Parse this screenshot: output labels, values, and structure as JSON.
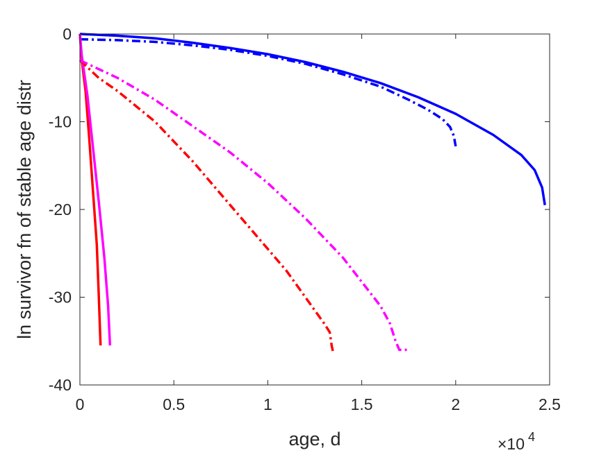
{
  "chart_data": {
    "type": "line",
    "title": "",
    "xlabel": "age, d",
    "ylabel": "ln survivor fn of stable age distr",
    "xlim": [
      0,
      2.5
    ],
    "ylim": [
      -40,
      0
    ],
    "x_multiplier": "×10",
    "x_multiplier_exp": "4",
    "x_ticks": [
      0,
      0.5,
      1,
      1.5,
      2,
      2.5
    ],
    "x_tick_labels": [
      "0",
      "0.5",
      "1",
      "1.5",
      "2",
      "2.5"
    ],
    "y_ticks": [
      0,
      -10,
      -20,
      -30,
      -40
    ],
    "y_tick_labels": [
      "0",
      "-10",
      "-20",
      "-30",
      "-40"
    ],
    "grid": false,
    "legend": "none",
    "series": [
      {
        "color": "#0000ff",
        "style": "solid",
        "points": [
          [
            0,
            0
          ],
          [
            0.2,
            -0.2
          ],
          [
            0.4,
            -0.5
          ],
          [
            0.6,
            -1.0
          ],
          [
            0.8,
            -1.6
          ],
          [
            1.0,
            -2.3
          ],
          [
            1.2,
            -3.2
          ],
          [
            1.4,
            -4.3
          ],
          [
            1.6,
            -5.6
          ],
          [
            1.8,
            -7.2
          ],
          [
            2.0,
            -9.1
          ],
          [
            2.2,
            -11.5
          ],
          [
            2.35,
            -13.8
          ],
          [
            2.42,
            -15.5
          ],
          [
            2.46,
            -17.5
          ],
          [
            2.475,
            -19.5
          ]
        ]
      },
      {
        "color": "#0000ff",
        "style": "dashdot",
        "points": [
          [
            0,
            -0.6
          ],
          [
            0.2,
            -0.7
          ],
          [
            0.4,
            -0.9
          ],
          [
            0.6,
            -1.3
          ],
          [
            0.8,
            -1.8
          ],
          [
            1.0,
            -2.5
          ],
          [
            1.2,
            -3.4
          ],
          [
            1.4,
            -4.6
          ],
          [
            1.6,
            -6.0
          ],
          [
            1.75,
            -7.5
          ],
          [
            1.85,
            -8.6
          ],
          [
            1.93,
            -9.7
          ],
          [
            1.97,
            -10.6
          ],
          [
            1.99,
            -11.6
          ],
          [
            2.0,
            -12.8
          ]
        ]
      },
      {
        "color": "#ff0000",
        "style": "solid",
        "points": [
          [
            0,
            0
          ],
          [
            0.01,
            -3.0
          ],
          [
            0.03,
            -6.5
          ],
          [
            0.05,
            -12.0
          ],
          [
            0.07,
            -18.0
          ],
          [
            0.09,
            -24.0
          ],
          [
            0.1,
            -29.5
          ],
          [
            0.11,
            -35.5
          ]
        ]
      },
      {
        "color": "#ff00ff",
        "style": "solid",
        "points": [
          [
            0,
            0
          ],
          [
            0.01,
            -2.5
          ],
          [
            0.04,
            -7.0
          ],
          [
            0.07,
            -13.0
          ],
          [
            0.1,
            -19.0
          ],
          [
            0.13,
            -25.5
          ],
          [
            0.15,
            -31.0
          ],
          [
            0.16,
            -35.5
          ]
        ]
      },
      {
        "color": "#ff0000",
        "style": "dashdot",
        "points": [
          [
            0,
            -3.0
          ],
          [
            0.1,
            -5.0
          ],
          [
            0.2,
            -6.5
          ],
          [
            0.4,
            -10.0
          ],
          [
            0.6,
            -14.5
          ],
          [
            0.8,
            -19.5
          ],
          [
            1.0,
            -24.5
          ],
          [
            1.1,
            -27.0
          ],
          [
            1.2,
            -30.0
          ],
          [
            1.3,
            -33.0
          ],
          [
            1.33,
            -34.0
          ],
          [
            1.34,
            -35.5
          ],
          [
            1.35,
            -36.5
          ]
        ]
      },
      {
        "color": "#ff00ff",
        "style": "dashdot",
        "points": [
          [
            0,
            -3.0
          ],
          [
            0.2,
            -5.0
          ],
          [
            0.4,
            -7.5
          ],
          [
            0.6,
            -10.5
          ],
          [
            0.8,
            -13.5
          ],
          [
            1.0,
            -17.0
          ],
          [
            1.2,
            -21.0
          ],
          [
            1.4,
            -25.5
          ],
          [
            1.6,
            -31.0
          ],
          [
            1.65,
            -33.0
          ],
          [
            1.68,
            -35.0
          ],
          [
            1.7,
            -36.0
          ],
          [
            1.74,
            -36.0
          ]
        ]
      }
    ]
  }
}
